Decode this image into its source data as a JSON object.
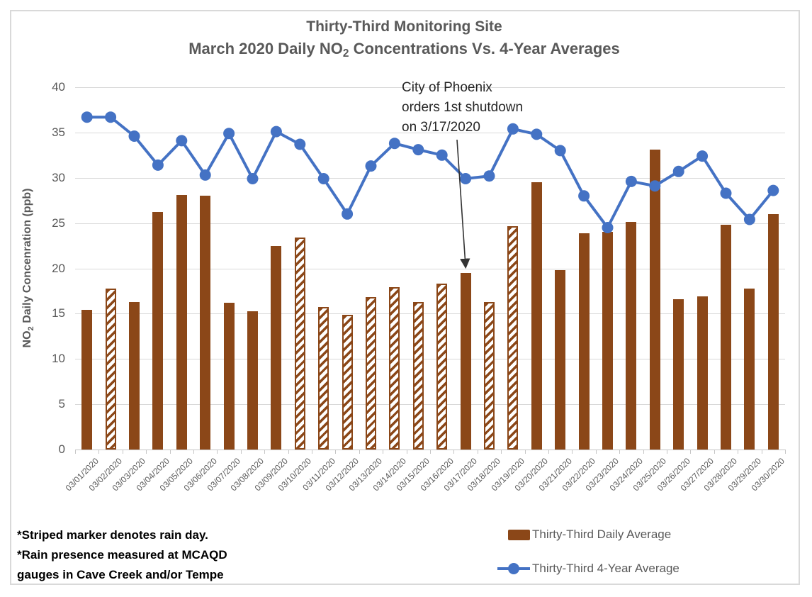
{
  "title": {
    "line1": "Thirty-Third Monitoring Site",
    "line2_pre": "March 2020 Daily NO",
    "line2_sub": "2",
    "line2_post": " Concentrations Vs. 4-Year Averages"
  },
  "y_axis": {
    "label_pre": "NO",
    "label_sub": "2",
    "label_post": " Daily Concenration (ppb)"
  },
  "annotation": {
    "lines": [
      "City of Phoenix",
      "orders 1st shutdown",
      "on 3/17/2020"
    ],
    "target_date": "03/17/2020"
  },
  "footnote": {
    "line1": "*Striped marker denotes rain day.",
    "line2": "*Rain presence measured at MCAQD",
    "line3": "gauges in Cave Creek and/or Tempe"
  },
  "legend": {
    "bar_label": "Thirty-Third Daily Average",
    "line_label": "Thirty-Third 4-Year Average"
  },
  "colors": {
    "bar": "#8b4718",
    "line": "#4472c4",
    "grid": "#d9d9d9",
    "axis_text": "#595959",
    "title_text": "#595959",
    "annotation_text": "#262626",
    "footnote_text": "#000000",
    "frame_border": "#d9d9d9",
    "arrow": "#333333"
  },
  "chart_data": {
    "type": "combo",
    "title": "Thirty-Third Monitoring Site — March 2020 Daily NO2 Concentrations Vs. 4-Year Averages",
    "ylabel": "NO2 Daily Concenration (ppb)",
    "ylim": [
      0,
      40
    ],
    "y_ticks": [
      0,
      5,
      10,
      15,
      20,
      25,
      30,
      35,
      40
    ],
    "grid": true,
    "legend_position": "bottom-right",
    "x_tick_label_rotation": -45,
    "categories": [
      "03/01/2020",
      "03/02/2020",
      "03/03/2020",
      "03/04/2020",
      "03/05/2020",
      "03/06/2020",
      "03/07/2020",
      "03/08/2020",
      "03/09/2020",
      "03/10/2020",
      "03/11/2020",
      "03/12/2020",
      "03/13/2020",
      "03/14/2020",
      "03/15/2020",
      "03/16/2020",
      "03/17/2020",
      "03/18/2020",
      "03/19/2020",
      "03/20/2020",
      "03/21/2020",
      "03/22/2020",
      "03/23/2020",
      "03/24/2020",
      "03/25/2020",
      "03/26/2020",
      "03/27/2020",
      "03/28/2020",
      "03/29/2020",
      "03/30/2020"
    ],
    "series": [
      {
        "name": "Thirty-Third Daily Average",
        "type": "bar",
        "values": [
          15.4,
          17.8,
          16.3,
          26.2,
          28.1,
          28.0,
          16.2,
          15.3,
          22.5,
          23.4,
          15.7,
          14.9,
          16.8,
          17.9,
          16.3,
          18.3,
          19.5,
          16.3,
          24.7,
          29.5,
          19.8,
          23.9,
          24.0,
          25.1,
          33.1,
          16.6,
          16.9,
          24.8,
          17.8,
          26.0
        ],
        "striped_rain_day": [
          false,
          true,
          false,
          false,
          false,
          false,
          false,
          false,
          false,
          true,
          true,
          true,
          true,
          true,
          true,
          true,
          false,
          true,
          true,
          false,
          false,
          false,
          false,
          false,
          false,
          false,
          false,
          false,
          false,
          false
        ],
        "striped_dates": [
          "03/02/2020",
          "03/10/2020",
          "03/11/2020",
          "03/12/2020",
          "03/13/2020",
          "03/14/2020",
          "03/15/2020",
          "03/16/2020",
          "03/18/2020",
          "03/19/2020"
        ]
      },
      {
        "name": "Thirty-Third 4-Year Average",
        "type": "line",
        "values": [
          36.7,
          36.7,
          34.6,
          31.4,
          34.1,
          30.3,
          34.9,
          29.9,
          35.1,
          33.7,
          29.9,
          26.0,
          31.3,
          33.8,
          33.1,
          32.5,
          29.9,
          30.2,
          35.4,
          34.8,
          33.0,
          28.0,
          24.5,
          29.6,
          29.1,
          30.7,
          32.4,
          28.3,
          25.4,
          28.6
        ]
      }
    ]
  }
}
